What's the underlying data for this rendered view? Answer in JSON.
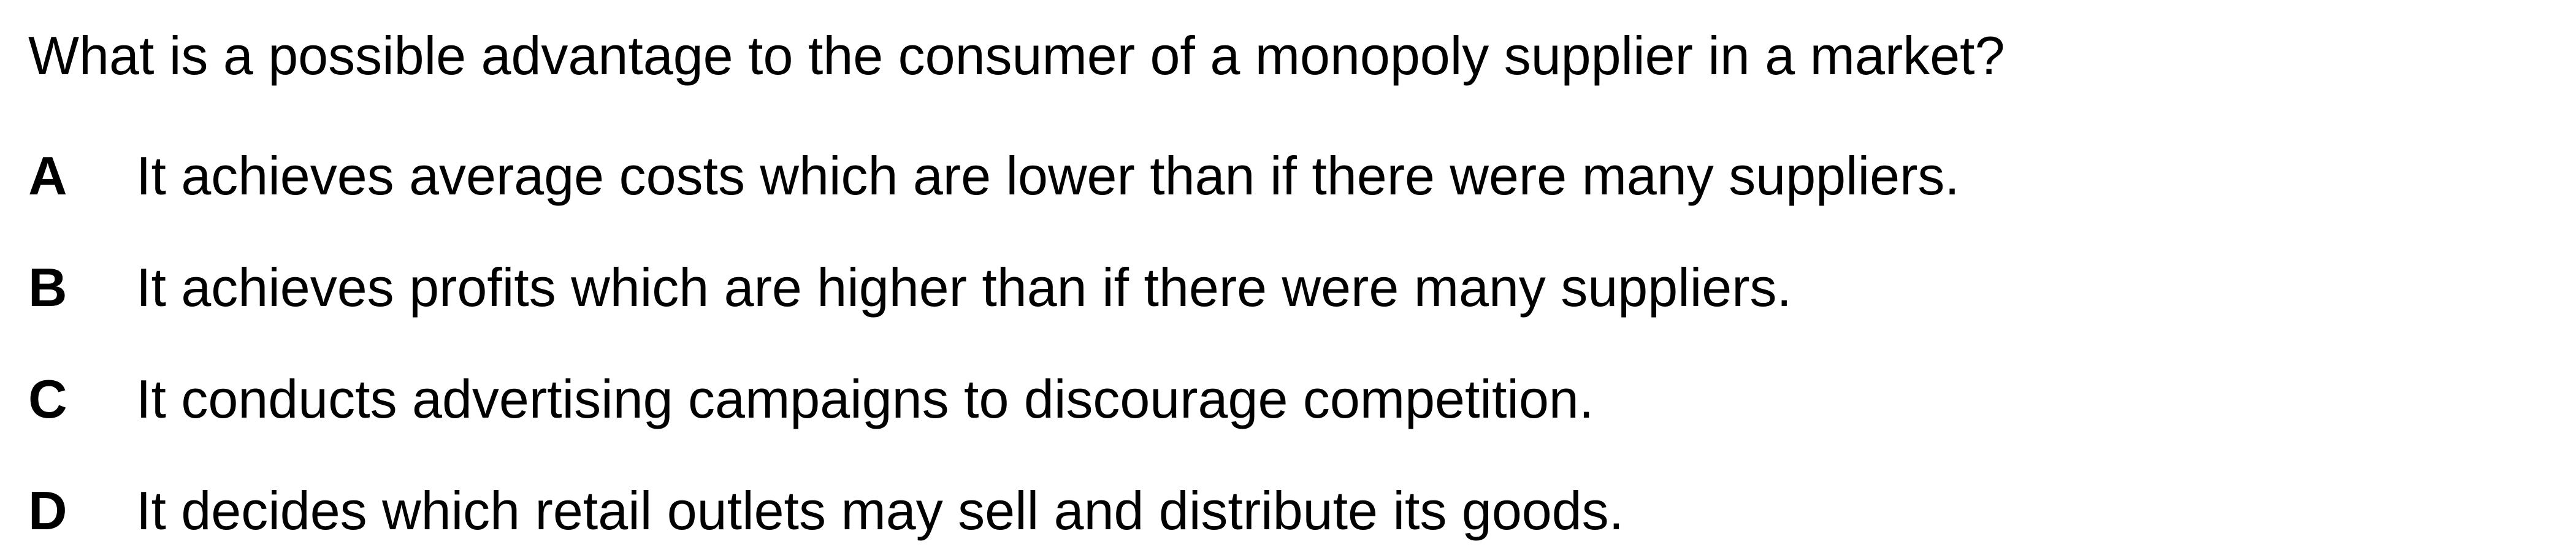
{
  "question": "What is a possible advantage to the consumer of a monopoly supplier in a market?",
  "options": [
    {
      "letter": "A",
      "text": "It achieves average costs which are lower than if there were many suppliers."
    },
    {
      "letter": "B",
      "text": "It achieves profits which are higher than if there were many suppliers."
    },
    {
      "letter": "C",
      "text": "It conducts advertising campaigns to discourage competition."
    },
    {
      "letter": "D",
      "text": "It decides which retail outlets may sell and distribute its goods."
    }
  ]
}
